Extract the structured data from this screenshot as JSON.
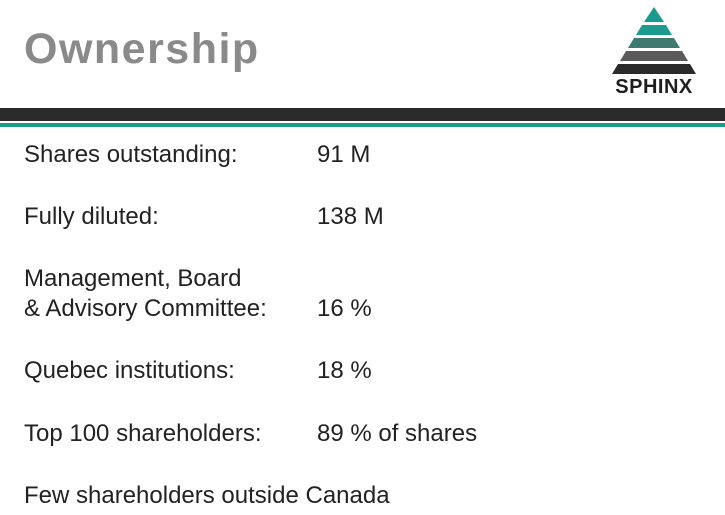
{
  "slide": {
    "title": "Ownership"
  },
  "logo": {
    "text": "SPHINX",
    "colors": {
      "teal": "#1b9a8e",
      "mid": "#3f7a70",
      "gray": "#5a5a5a",
      "dark": "#2a2a2a"
    }
  },
  "rows": [
    {
      "label": "Shares outstanding:",
      "value": "91 M"
    },
    {
      "label": "Fully diluted:",
      "value": "138 M"
    },
    {
      "label_line1": "Management, Board",
      "label_line2": "& Advisory Committee:",
      "value": "16 %"
    },
    {
      "label": "Quebec institutions:",
      "value": "18 %"
    },
    {
      "label": "Top 100 shareholders:",
      "value": "89 % of shares"
    },
    {
      "label": "Few shareholders outside Canada"
    }
  ]
}
